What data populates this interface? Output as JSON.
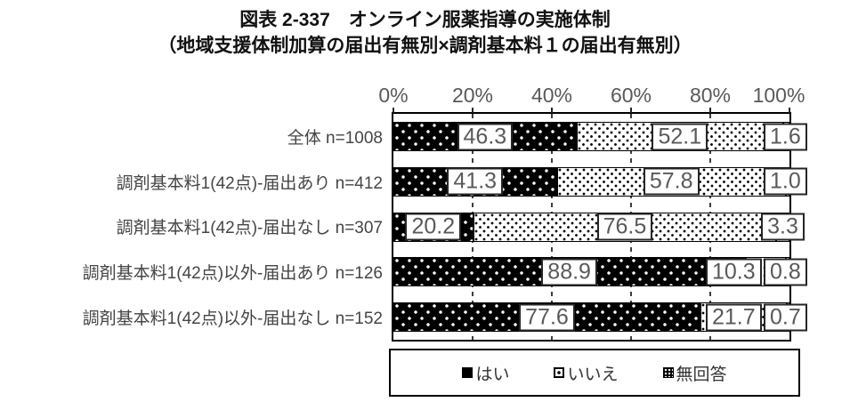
{
  "title": {
    "line1": "図表 2-337　オンライン服薬指導の実施体制",
    "line2": "（地域支援体制加算の届出有無別×調剤基本料１の届出有無別）"
  },
  "chart_data": {
    "type": "bar",
    "stacked": true,
    "orientation": "horizontal",
    "unit": "%",
    "categories": [
      "全体 n=1008",
      "調剤基本料1(42点)-届出あり n=412",
      "調剤基本料1(42点)-届出なし n=307",
      "調剤基本料1(42点)以外-届出あり n=126",
      "調剤基本料1(42点)以外-届出なし n=152"
    ],
    "series": [
      {
        "name": "はい",
        "pattern": "black-with-white-dots",
        "legend_key": "solid-black-square",
        "values": [
          46.3,
          41.3,
          20.2,
          88.9,
          77.6
        ]
      },
      {
        "name": "いいえ",
        "pattern": "white-with-black-dots",
        "legend_key": "white-square-center-dot",
        "values": [
          52.1,
          57.8,
          76.5,
          10.3,
          21.7
        ]
      },
      {
        "name": "無回答",
        "pattern": "white-with-black-dots",
        "legend_key": "black-square-white-dot-grid",
        "values": [
          1.6,
          1.0,
          3.3,
          0.8,
          0.7
        ]
      }
    ],
    "x_ticks": [
      "0%",
      "20%",
      "40%",
      "60%",
      "80%",
      "100%"
    ],
    "xlim": [
      0,
      100
    ],
    "gridlines": "vertical-dashed-every-20-percent",
    "legend_position": "bottom-boxed",
    "value_label_format": "one-decimal-in-white-box"
  },
  "colors": {
    "bar_fill_black": "#000000",
    "bar_fill_white": "#ffffff",
    "plot_border": "#000000",
    "tick_text": "#595959",
    "value_text": "#595959",
    "category_text": "#454545",
    "title_text": "#111111"
  }
}
